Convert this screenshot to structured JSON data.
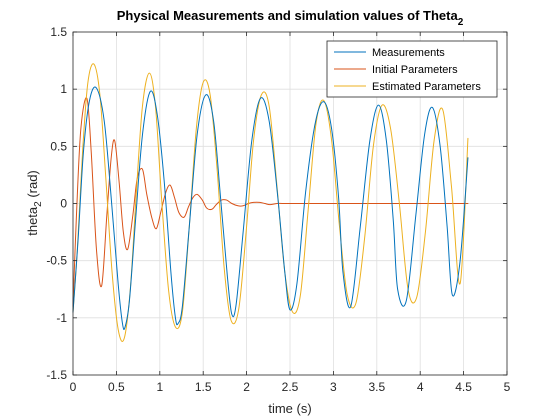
{
  "chart_data": {
    "type": "line",
    "title": "Physical Measurements and simulation values of Theta",
    "title_subscript": "2",
    "xlabel": "time (s)",
    "ylabel": "theta",
    "ylabel_subscript": "2",
    "ylabel_suffix": " (rad)",
    "xlim": [
      0,
      5
    ],
    "ylim": [
      -1.5,
      1.5
    ],
    "xticks": [
      0,
      0.5,
      1,
      1.5,
      2,
      2.5,
      3,
      3.5,
      4,
      4.5,
      5
    ],
    "xtick_labels": [
      "0",
      "0.5",
      "1",
      "1.5",
      "2",
      "2.5",
      "3",
      "3.5",
      "4",
      "4.5",
      "5"
    ],
    "yticks": [
      -1.5,
      -1,
      -0.5,
      0,
      0.5,
      1,
      1.5
    ],
    "ytick_labels": [
      "-1.5",
      "-1",
      "-0.5",
      "0",
      "0.5",
      "1",
      "1.5"
    ],
    "grid": true,
    "legend_position": "top-right",
    "series": [
      {
        "name": "Measurements",
        "color": "#0072BD",
        "x": [
          0,
          0.06,
          0.12,
          0.19,
          0.27,
          0.36,
          0.44,
          0.52,
          0.57,
          0.6,
          0.65,
          0.72,
          0.8,
          0.89,
          0.97,
          1.05,
          1.13,
          1.18,
          1.21,
          1.26,
          1.34,
          1.43,
          1.53,
          1.62,
          1.7,
          1.78,
          1.83,
          1.88,
          1.96,
          2.06,
          2.16,
          2.26,
          2.36,
          2.44,
          2.5,
          2.58,
          2.68,
          2.79,
          2.89,
          2.98,
          3.06,
          3.11,
          3.2,
          3.31,
          3.42,
          3.52,
          3.61,
          3.69,
          3.74,
          3.84,
          3.95,
          4.05,
          4.14,
          4.23,
          4.31,
          4.37,
          4.46,
          4.55
        ],
        "values": [
          -0.95,
          -0.3,
          0.45,
          0.9,
          1.01,
          0.72,
          0.05,
          -0.7,
          -1.05,
          -1.08,
          -0.85,
          -0.15,
          0.6,
          0.98,
          0.78,
          0.2,
          -0.62,
          -1.0,
          -1.05,
          -0.9,
          -0.2,
          0.6,
          0.95,
          0.72,
          0.05,
          -0.65,
          -0.97,
          -0.88,
          -0.25,
          0.55,
          0.92,
          0.72,
          0.05,
          -0.6,
          -0.93,
          -0.7,
          0.1,
          0.7,
          0.89,
          0.65,
          0.05,
          -0.6,
          -0.9,
          -0.2,
          0.55,
          0.86,
          0.55,
          -0.15,
          -0.75,
          -0.85,
          -0.1,
          0.6,
          0.84,
          0.5,
          -0.2,
          -0.8,
          -0.5,
          0.4
        ]
      },
      {
        "name": "Initial Parameters",
        "color": "#D95319",
        "x": [
          0,
          0.04,
          0.09,
          0.16,
          0.21,
          0.27,
          0.33,
          0.39,
          0.44,
          0.48,
          0.53,
          0.58,
          0.63,
          0.69,
          0.74,
          0.8,
          0.85,
          0.91,
          0.96,
          1.01,
          1.07,
          1.12,
          1.17,
          1.22,
          1.28,
          1.33,
          1.38,
          1.43,
          1.49,
          1.54,
          1.6,
          1.65,
          1.71,
          1.77,
          1.83,
          1.9,
          1.96,
          2.02,
          2.08,
          2.15,
          2.21,
          2.27,
          2.35,
          2.45,
          2.6,
          2.8,
          3.1,
          3.5,
          4.0,
          4.55
        ],
        "values": [
          -0.9,
          -0.1,
          0.65,
          0.92,
          0.45,
          -0.4,
          -0.72,
          -0.1,
          0.4,
          0.55,
          0.2,
          -0.25,
          -0.4,
          -0.1,
          0.22,
          0.3,
          0.08,
          -0.13,
          -0.22,
          -0.08,
          0.1,
          0.16,
          0.05,
          -0.08,
          -0.12,
          -0.03,
          0.05,
          0.08,
          0.03,
          -0.04,
          -0.05,
          -0.01,
          0.03,
          0.03,
          0.0,
          -0.02,
          -0.02,
          0.0,
          0.01,
          0.01,
          0.0,
          -0.01,
          0.0,
          0.0,
          0.0,
          0.0,
          0.0,
          0.0,
          0.0,
          0.0
        ]
      },
      {
        "name": "Estimated Parameters",
        "color": "#EDB120",
        "x": [
          0,
          0.05,
          0.11,
          0.17,
          0.24,
          0.31,
          0.38,
          0.45,
          0.52,
          0.59,
          0.66,
          0.73,
          0.8,
          0.88,
          0.95,
          1.02,
          1.1,
          1.18,
          1.26,
          1.34,
          1.42,
          1.5,
          1.58,
          1.66,
          1.74,
          1.82,
          1.91,
          2.0,
          2.08,
          2.17,
          2.26,
          2.35,
          2.44,
          2.53,
          2.62,
          2.71,
          2.8,
          2.89,
          2.98,
          3.07,
          3.16,
          3.26,
          3.36,
          3.46,
          3.56,
          3.66,
          3.76,
          3.86,
          3.96,
          4.06,
          4.16,
          4.26,
          4.36,
          4.46,
          4.55
        ],
        "values": [
          -0.95,
          -0.4,
          0.45,
          1.05,
          1.22,
          0.95,
          0.2,
          -0.6,
          -1.1,
          -1.18,
          -0.75,
          0.1,
          0.85,
          1.14,
          0.85,
          0.05,
          -0.75,
          -1.08,
          -0.95,
          -0.2,
          0.65,
          1.06,
          0.95,
          0.3,
          -0.55,
          -1.02,
          -0.92,
          -0.2,
          0.55,
          0.95,
          0.85,
          0.15,
          -0.6,
          -0.95,
          -0.8,
          -0.05,
          0.7,
          0.9,
          0.55,
          -0.2,
          -0.8,
          -0.87,
          -0.3,
          0.5,
          0.86,
          0.65,
          0.0,
          -0.75,
          -0.82,
          -0.25,
          0.55,
          0.82,
          0.15,
          -0.7,
          0.57
        ]
      }
    ]
  }
}
